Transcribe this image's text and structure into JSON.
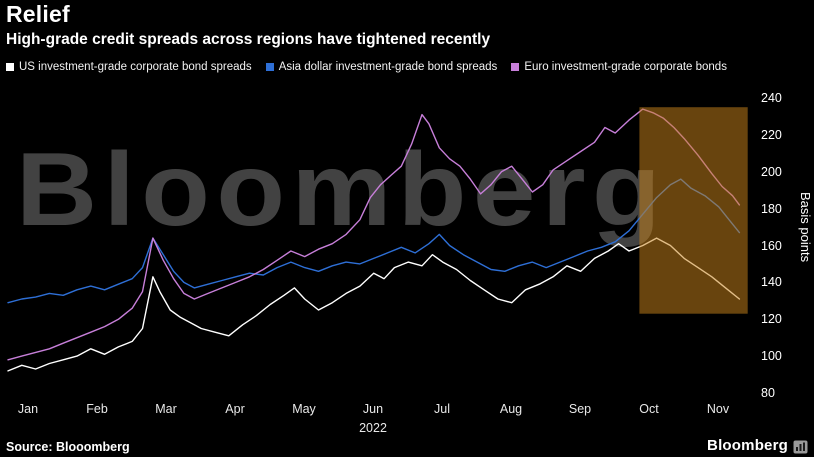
{
  "header": {
    "title": "Relief",
    "subtitle": "High-grade credit spreads across regions have tightened recently"
  },
  "chart": {
    "watermark": "Bloomberg",
    "y_axis_label": "Basis points",
    "x_axis_year": "2022"
  },
  "footer": {
    "source": "Source: Blooomberg",
    "brand": "Bloomberg"
  },
  "chart_data": {
    "type": "line",
    "title": "Relief",
    "subtitle": "High-grade credit spreads across regions have tightened recently",
    "ylabel": "Basis points",
    "ylim": [
      80,
      240
    ],
    "yticks": [
      240,
      220,
      200,
      180,
      160,
      140,
      120,
      100,
      80
    ],
    "xtick_labels": [
      "Jan",
      "Feb",
      "Mar",
      "Apr",
      "May",
      "Jun",
      "Jul",
      "Aug",
      "Sep",
      "Oct",
      "Nov"
    ],
    "x_unit_note": "x values are months since Jan 1 2022 (0 = Jan)",
    "grid": false,
    "legend_position": "top",
    "highlight_region": {
      "x_from": 9.15,
      "x_to": 10.72,
      "y_from": 123,
      "y_to": 235,
      "color": "#c8821a",
      "opacity": 0.52
    },
    "series": [
      {
        "name": "US investment-grade corporate bond spreads",
        "color": "#ffffff",
        "points": [
          [
            0,
            92
          ],
          [
            0.2,
            95
          ],
          [
            0.4,
            93
          ],
          [
            0.6,
            96
          ],
          [
            0.8,
            98
          ],
          [
            1.0,
            100
          ],
          [
            1.2,
            104
          ],
          [
            1.4,
            101
          ],
          [
            1.6,
            105
          ],
          [
            1.8,
            108
          ],
          [
            1.95,
            115
          ],
          [
            2.1,
            143
          ],
          [
            2.2,
            135
          ],
          [
            2.35,
            125
          ],
          [
            2.5,
            121
          ],
          [
            2.65,
            118
          ],
          [
            2.8,
            115
          ],
          [
            3.0,
            113
          ],
          [
            3.2,
            111
          ],
          [
            3.4,
            117
          ],
          [
            3.6,
            122
          ],
          [
            3.8,
            128
          ],
          [
            4.0,
            133
          ],
          [
            4.15,
            137
          ],
          [
            4.3,
            131
          ],
          [
            4.5,
            125
          ],
          [
            4.7,
            129
          ],
          [
            4.9,
            134
          ],
          [
            5.1,
            138
          ],
          [
            5.3,
            145
          ],
          [
            5.45,
            142
          ],
          [
            5.6,
            148
          ],
          [
            5.8,
            151
          ],
          [
            6.0,
            149
          ],
          [
            6.15,
            155
          ],
          [
            6.3,
            151
          ],
          [
            6.5,
            147
          ],
          [
            6.7,
            141
          ],
          [
            6.9,
            136
          ],
          [
            7.1,
            131
          ],
          [
            7.3,
            129
          ],
          [
            7.5,
            136
          ],
          [
            7.7,
            139
          ],
          [
            7.9,
            143
          ],
          [
            8.1,
            149
          ],
          [
            8.3,
            146
          ],
          [
            8.5,
            153
          ],
          [
            8.7,
            157
          ],
          [
            8.85,
            161
          ],
          [
            9.0,
            157
          ],
          [
            9.2,
            160
          ],
          [
            9.4,
            164
          ],
          [
            9.6,
            160
          ],
          [
            9.8,
            153
          ],
          [
            10.0,
            148
          ],
          [
            10.2,
            143
          ],
          [
            10.4,
            137
          ],
          [
            10.6,
            131
          ]
        ]
      },
      {
        "name": "Asia dollar investment-grade bond spreads",
        "color": "#2e6fd6",
        "points": [
          [
            0,
            129
          ],
          [
            0.2,
            131
          ],
          [
            0.4,
            132
          ],
          [
            0.6,
            134
          ],
          [
            0.8,
            133
          ],
          [
            1.0,
            136
          ],
          [
            1.2,
            138
          ],
          [
            1.4,
            136
          ],
          [
            1.6,
            139
          ],
          [
            1.8,
            142
          ],
          [
            1.95,
            148
          ],
          [
            2.1,
            164
          ],
          [
            2.25,
            155
          ],
          [
            2.4,
            146
          ],
          [
            2.55,
            140
          ],
          [
            2.7,
            137
          ],
          [
            2.9,
            139
          ],
          [
            3.1,
            141
          ],
          [
            3.3,
            143
          ],
          [
            3.5,
            145
          ],
          [
            3.7,
            144
          ],
          [
            3.9,
            148
          ],
          [
            4.1,
            151
          ],
          [
            4.3,
            148
          ],
          [
            4.5,
            146
          ],
          [
            4.7,
            149
          ],
          [
            4.9,
            151
          ],
          [
            5.1,
            150
          ],
          [
            5.3,
            153
          ],
          [
            5.5,
            156
          ],
          [
            5.7,
            159
          ],
          [
            5.9,
            156
          ],
          [
            6.1,
            161
          ],
          [
            6.25,
            166
          ],
          [
            6.4,
            160
          ],
          [
            6.6,
            155
          ],
          [
            6.8,
            151
          ],
          [
            7.0,
            147
          ],
          [
            7.2,
            146
          ],
          [
            7.4,
            149
          ],
          [
            7.6,
            151
          ],
          [
            7.8,
            148
          ],
          [
            8.0,
            151
          ],
          [
            8.2,
            154
          ],
          [
            8.4,
            157
          ],
          [
            8.6,
            159
          ],
          [
            8.8,
            162
          ],
          [
            9.0,
            168
          ],
          [
            9.2,
            177
          ],
          [
            9.4,
            186
          ],
          [
            9.6,
            193
          ],
          [
            9.75,
            196
          ],
          [
            9.9,
            191
          ],
          [
            10.1,
            187
          ],
          [
            10.3,
            181
          ],
          [
            10.45,
            174
          ],
          [
            10.6,
            167
          ]
        ]
      },
      {
        "name": "Euro investment-grade corporate bonds",
        "color": "#c77fd9",
        "points": [
          [
            0,
            98
          ],
          [
            0.2,
            100
          ],
          [
            0.4,
            102
          ],
          [
            0.6,
            104
          ],
          [
            0.8,
            107
          ],
          [
            1.0,
            110
          ],
          [
            1.2,
            113
          ],
          [
            1.4,
            116
          ],
          [
            1.6,
            120
          ],
          [
            1.8,
            126
          ],
          [
            1.95,
            135
          ],
          [
            2.1,
            164
          ],
          [
            2.25,
            152
          ],
          [
            2.4,
            142
          ],
          [
            2.55,
            134
          ],
          [
            2.7,
            131
          ],
          [
            2.9,
            134
          ],
          [
            3.1,
            137
          ],
          [
            3.3,
            140
          ],
          [
            3.5,
            143
          ],
          [
            3.7,
            147
          ],
          [
            3.9,
            152
          ],
          [
            4.1,
            157
          ],
          [
            4.3,
            154
          ],
          [
            4.5,
            158
          ],
          [
            4.7,
            161
          ],
          [
            4.9,
            166
          ],
          [
            5.1,
            174
          ],
          [
            5.25,
            186
          ],
          [
            5.4,
            193
          ],
          [
            5.55,
            198
          ],
          [
            5.7,
            203
          ],
          [
            5.85,
            215
          ],
          [
            6.0,
            231
          ],
          [
            6.1,
            226
          ],
          [
            6.25,
            213
          ],
          [
            6.4,
            207
          ],
          [
            6.55,
            203
          ],
          [
            6.7,
            196
          ],
          [
            6.85,
            188
          ],
          [
            7.0,
            193
          ],
          [
            7.15,
            200
          ],
          [
            7.3,
            203
          ],
          [
            7.45,
            196
          ],
          [
            7.6,
            189
          ],
          [
            7.75,
            193
          ],
          [
            7.9,
            201
          ],
          [
            8.1,
            206
          ],
          [
            8.3,
            211
          ],
          [
            8.5,
            216
          ],
          [
            8.65,
            224
          ],
          [
            8.8,
            221
          ],
          [
            9.0,
            228
          ],
          [
            9.2,
            234
          ],
          [
            9.35,
            232
          ],
          [
            9.5,
            229
          ],
          [
            9.65,
            224
          ],
          [
            9.8,
            218
          ],
          [
            10.0,
            209
          ],
          [
            10.2,
            199
          ],
          [
            10.35,
            192
          ],
          [
            10.5,
            187
          ],
          [
            10.6,
            182
          ]
        ]
      }
    ]
  }
}
